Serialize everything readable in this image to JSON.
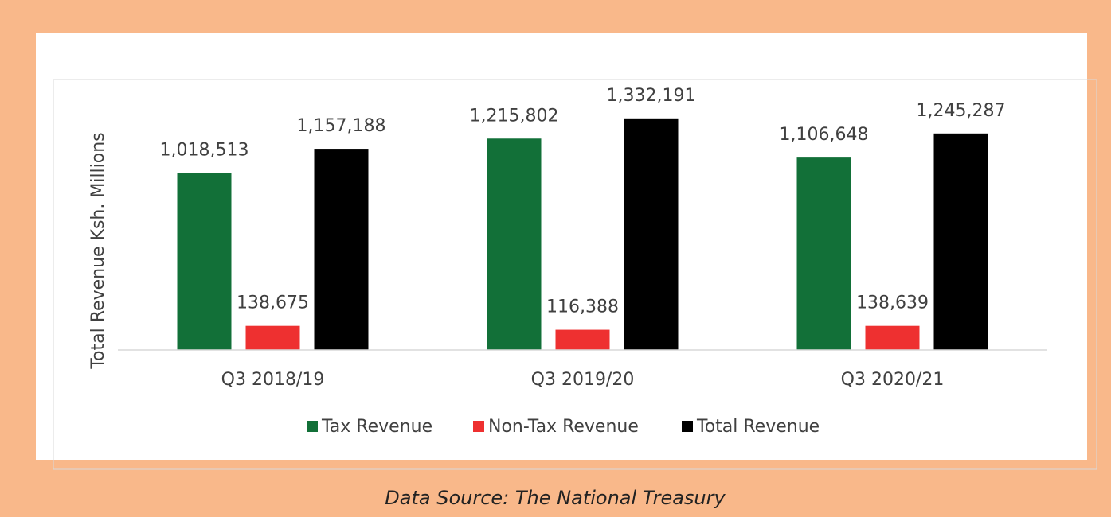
{
  "chart_data": {
    "type": "bar",
    "ylabel": "Total Revenue Ksh. Millions",
    "categories": [
      "Q3 2018/19",
      "Q3 2019/20",
      "Q3 2020/21"
    ],
    "series": [
      {
        "name": "Tax Revenue",
        "color": "#127038",
        "values": [
          1018513,
          1215802,
          1106648
        ],
        "value_labels": [
          "1,018,513",
          "1,215,802",
          "1,106,648"
        ]
      },
      {
        "name": "Non-Tax Revenue",
        "color": "#ee3030",
        "values": [
          138675,
          116388,
          138639
        ],
        "value_labels": [
          "138,675",
          "116,388",
          "138,639"
        ]
      },
      {
        "name": "Total Revenue",
        "color": "#000000",
        "values": [
          1157188,
          1332191,
          1245287
        ],
        "value_labels": [
          "1,157,188",
          "1,332,191",
          "1,245,287"
        ]
      }
    ],
    "ylim": [
      0,
      1400000
    ],
    "source": "Data Source: The National Treasury"
  }
}
